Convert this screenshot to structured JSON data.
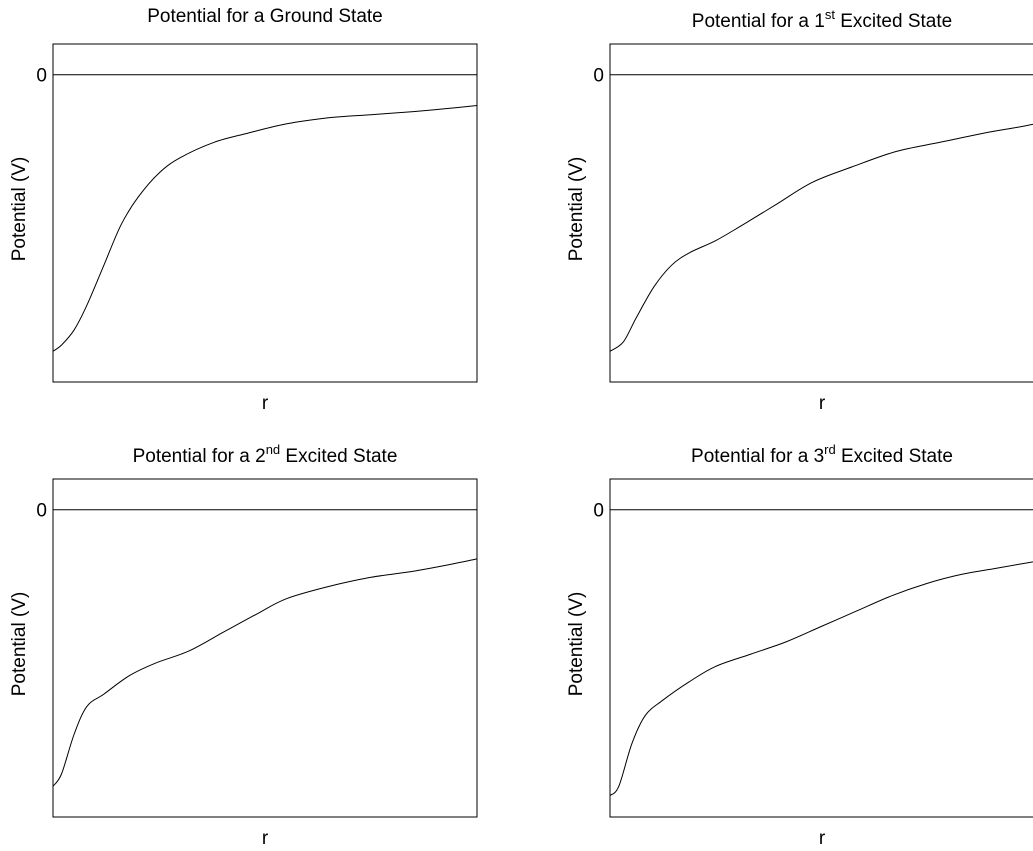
{
  "chart_data": [
    {
      "type": "line",
      "title": "Potential for a Ground State",
      "title_parts": {
        "prefix": "Potential for a Ground State",
        "sup": "",
        "suffix": ""
      },
      "xlabel": "r",
      "ylabel": "Potential (V)",
      "yticks": [
        "0"
      ],
      "ylim": [
        -1.0,
        0.1
      ],
      "xlim": [
        0,
        1
      ],
      "grid": false,
      "reference_line_y": 0,
      "series": [
        {
          "x": [
            0,
            0.02,
            0.05,
            0.08,
            0.12,
            0.16,
            0.2,
            0.25,
            0.3,
            0.38,
            0.46,
            0.55,
            0.65,
            0.75,
            0.85,
            0.93,
            1.0
          ],
          "y": [
            -0.9,
            -0.88,
            -0.83,
            -0.75,
            -0.62,
            -0.49,
            -0.4,
            -0.32,
            -0.27,
            -0.22,
            -0.19,
            -0.16,
            -0.14,
            -0.13,
            -0.12,
            -0.11,
            -0.1
          ]
        }
      ]
    },
    {
      "type": "line",
      "title": "Potential for a 1st Excited State",
      "title_parts": {
        "prefix": "Potential for a 1",
        "sup": "st",
        "suffix": " Excited State"
      },
      "xlabel": "r",
      "ylabel": "Potential (V)",
      "yticks": [
        "0"
      ],
      "ylim": [
        -1.0,
        0.1
      ],
      "xlim": [
        0,
        1
      ],
      "grid": false,
      "reference_line_y": 0,
      "series": [
        {
          "x": [
            0,
            0.03,
            0.06,
            0.1,
            0.14,
            0.18,
            0.24,
            0.3,
            0.38,
            0.46,
            0.55,
            0.65,
            0.75,
            0.85,
            0.93,
            1.0
          ],
          "y": [
            -0.9,
            -0.87,
            -0.79,
            -0.69,
            -0.62,
            -0.58,
            -0.54,
            -0.49,
            -0.42,
            -0.35,
            -0.3,
            -0.25,
            -0.22,
            -0.19,
            -0.17,
            -0.15
          ]
        }
      ]
    },
    {
      "type": "line",
      "title": "Potential for a 2nd Excited State",
      "title_parts": {
        "prefix": "Potential for a 2",
        "sup": "nd",
        "suffix": " Excited State"
      },
      "xlabel": "r",
      "ylabel": "Potential (V)",
      "yticks": [
        "0"
      ],
      "ylim": [
        -1.0,
        0.1
      ],
      "xlim": [
        0,
        1
      ],
      "grid": false,
      "reference_line_y": 0,
      "series": [
        {
          "x": [
            0,
            0.02,
            0.05,
            0.08,
            0.12,
            0.18,
            0.24,
            0.32,
            0.4,
            0.48,
            0.55,
            0.65,
            0.75,
            0.85,
            0.93,
            1.0
          ],
          "y": [
            -0.9,
            -0.86,
            -0.73,
            -0.64,
            -0.6,
            -0.54,
            -0.5,
            -0.46,
            -0.4,
            -0.34,
            -0.29,
            -0.25,
            -0.22,
            -0.2,
            -0.18,
            -0.16
          ]
        }
      ]
    },
    {
      "type": "line",
      "title": "Potential for a 3rd Excited State",
      "title_parts": {
        "prefix": "Potential for a 3",
        "sup": "rd",
        "suffix": " Excited State"
      },
      "xlabel": "r",
      "ylabel": "Potential (V)",
      "yticks": [
        "0"
      ],
      "ylim": [
        -1.0,
        0.1
      ],
      "xlim": [
        0,
        1
      ],
      "grid": false,
      "reference_line_y": 0,
      "series": [
        {
          "x": [
            0,
            0.02,
            0.05,
            0.08,
            0.12,
            0.18,
            0.24,
            0.32,
            0.4,
            0.48,
            0.56,
            0.64,
            0.72,
            0.8,
            0.88,
            1.0
          ],
          "y": [
            -0.93,
            -0.9,
            -0.76,
            -0.67,
            -0.62,
            -0.56,
            -0.51,
            -0.47,
            -0.43,
            -0.38,
            -0.33,
            -0.28,
            -0.24,
            -0.21,
            -0.19,
            -0.16
          ]
        }
      ]
    }
  ]
}
